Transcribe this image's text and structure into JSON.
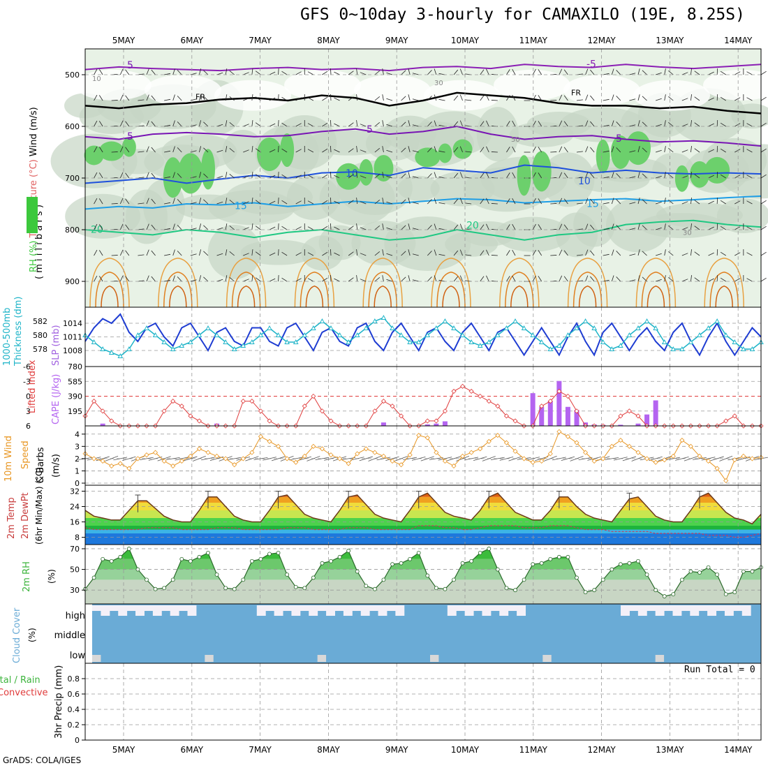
{
  "title": "GFS 0~10day 3-hourly for CAMAXILO (19E, 8.25S)",
  "footer": "GrADS: COLA/IGES",
  "colors": {
    "rh_green": "#3cc83c",
    "slp": "#1e3cd2",
    "thickness": "#1eb4c8",
    "lifted": "#e03c3c",
    "cape": "#b464f0",
    "speed": "#e89622",
    "rh2m": "#3cb43c",
    "cloud": "#6aabd6"
  },
  "chart_data": [
    {
      "type": "heatmap",
      "panel": "upper-air",
      "ylabel_parts": [
        "RH (%)",
        "Temperature (°C)",
        "Wind (m/s)"
      ],
      "ylabel_sub": "( m i l l i b a r s )",
      "x_labels": [
        "5MAY",
        "6MAY",
        "7MAY",
        "8MAY",
        "9MAY",
        "10MAY",
        "11MAY",
        "12MAY",
        "13MAY",
        "14MAY"
      ],
      "y_ticks": [
        500,
        600,
        700,
        800,
        900
      ],
      "ylim": [
        450,
        950
      ],
      "contour_labels": [
        "-5",
        "FR",
        "5",
        "10",
        "15",
        "20",
        "30",
        "50",
        "10"
      ],
      "isotherms": [
        {
          "label": "-5",
          "p": [
            490,
            485,
            488,
            490,
            492,
            488,
            486,
            490,
            488,
            492,
            486,
            484,
            488,
            480,
            484,
            486,
            480,
            485,
            488,
            484,
            480
          ]
        },
        {
          "label": "FR",
          "p": [
            560,
            565,
            558,
            555,
            548,
            545,
            550,
            540,
            545,
            560,
            550,
            535,
            540,
            545,
            555,
            560,
            560,
            565,
            562,
            570,
            575
          ]
        },
        {
          "label": "5",
          "p": [
            620,
            625,
            615,
            612,
            615,
            620,
            618,
            610,
            605,
            615,
            610,
            600,
            615,
            625,
            620,
            618,
            625,
            630,
            628,
            632,
            638
          ]
        },
        {
          "label": "10",
          "p": [
            710,
            705,
            700,
            710,
            702,
            695,
            700,
            690,
            688,
            695,
            680,
            685,
            690,
            675,
            680,
            690,
            685,
            690,
            692,
            690,
            692
          ]
        },
        {
          "label": "15",
          "p": [
            760,
            755,
            758,
            750,
            752,
            748,
            755,
            750,
            745,
            750,
            745,
            740,
            742,
            748,
            745,
            742,
            740,
            745,
            742,
            738,
            735
          ]
        },
        {
          "label": "20",
          "p": [
            800,
            805,
            810,
            800,
            805,
            815,
            805,
            800,
            810,
            820,
            815,
            800,
            810,
            820,
            810,
            805,
            790,
            785,
            782,
            790,
            795
          ]
        }
      ]
    },
    {
      "type": "line",
      "panel": "slp-thickness",
      "ylabel_left": [
        "1000-500mb",
        "Thickness (dm)"
      ],
      "ylabel_right": "SLP (mb)",
      "y_ticks_left": [
        578,
        580,
        582
      ],
      "y_ticks_right": [
        1008,
        1011,
        1014
      ],
      "series": [
        {
          "name": "SLP (mb)",
          "values": [
            1010,
            1013,
            1015,
            1014,
            1016,
            1012,
            1010,
            1013,
            1014,
            1011,
            1009,
            1013,
            1014,
            1011,
            1008,
            1012,
            1013,
            1010,
            1009,
            1013,
            1013,
            1010,
            1009,
            1013,
            1014,
            1011,
            1008,
            1012,
            1013,
            1010,
            1009,
            1013,
            1014,
            1010,
            1008,
            1012,
            1014,
            1011,
            1008,
            1012,
            1013,
            1010,
            1008,
            1012,
            1014,
            1011,
            1008,
            1012,
            1013,
            1010,
            1007,
            1010,
            1013,
            1010,
            1007,
            1011,
            1014,
            1010,
            1007,
            1012,
            1014,
            1011,
            1008,
            1011,
            1013,
            1010,
            1008,
            1012,
            1014,
            1010,
            1007,
            1011,
            1014,
            1010,
            1007,
            1010,
            1013,
            1011
          ]
        },
        {
          "name": "1000-500mb Thickness (dm)",
          "values": [
            580,
            579,
            578,
            577.5,
            577,
            578,
            580,
            581,
            580,
            579,
            578,
            578.5,
            579,
            580,
            581,
            580,
            579,
            578,
            578.5,
            579,
            580,
            581,
            580,
            579,
            579,
            580,
            581,
            582,
            581,
            580,
            579,
            580,
            581,
            582,
            582.5,
            581,
            580,
            579,
            579,
            580,
            581,
            582,
            581,
            580,
            579,
            578.5,
            579,
            580,
            581,
            582,
            581,
            580,
            579,
            578,
            578.5,
            580,
            581,
            582,
            581,
            579,
            578,
            578.5,
            580,
            581,
            582,
            581,
            579,
            578,
            578,
            579,
            580,
            581,
            582,
            580,
            579,
            578,
            578,
            579
          ]
        }
      ]
    },
    {
      "type": "bar",
      "panel": "lifted-cape",
      "ylabel_left": "Lifted Index",
      "ylabel_right": "CAPE (J/kg)",
      "y_ticks_left": [
        "-6",
        "-3",
        "0",
        "3",
        "6"
      ],
      "y_ticks_right": [
        195,
        390,
        585,
        780
      ],
      "series": [
        {
          "name": "Lifted Index",
          "values": [
            4,
            1,
            3,
            5,
            6,
            6,
            6,
            6,
            6,
            3,
            1,
            2,
            4,
            5,
            6,
            6,
            6,
            6,
            1,
            1,
            3,
            5,
            6,
            6,
            6,
            2,
            0,
            3,
            5,
            6,
            6,
            6,
            6,
            3,
            1,
            2,
            4,
            6,
            6,
            5,
            5,
            3,
            -1,
            -2,
            -1,
            0,
            1,
            2,
            4,
            5,
            6,
            6,
            2,
            1,
            -1,
            0,
            3,
            6,
            6,
            6,
            6,
            4,
            3,
            4,
            6,
            6,
            6,
            6,
            6,
            6,
            6,
            6,
            6,
            5,
            4,
            6,
            6,
            6
          ]
        },
        {
          "name": "CAPE (J/kg)",
          "values": [
            0,
            0,
            30,
            0,
            0,
            0,
            0,
            0,
            0,
            0,
            0,
            0,
            0,
            0,
            0,
            30,
            0,
            0,
            0,
            0,
            0,
            0,
            0,
            0,
            0,
            0,
            0,
            0,
            0,
            0,
            0,
            0,
            0,
            0,
            45,
            0,
            0,
            0,
            0,
            20,
            30,
            60,
            0,
            0,
            0,
            0,
            0,
            0,
            0,
            0,
            0,
            430,
            250,
            330,
            590,
            250,
            210,
            45,
            20,
            15,
            0,
            15,
            0,
            30,
            150,
            335,
            0,
            0,
            0,
            0,
            0,
            0,
            0,
            0,
            0,
            0,
            0,
            0
          ]
        }
      ]
    },
    {
      "type": "line",
      "panel": "wind10m",
      "ylabel": [
        "10m Wind",
        "Speed",
        "& Barbs",
        "(m/s)"
      ],
      "y_ticks": [
        0,
        1,
        2,
        3,
        4
      ],
      "series": [
        {
          "name": "10m Wind Speed",
          "values": [
            2.4,
            2,
            1.8,
            1.4,
            1.6,
            1.2,
            2,
            2.3,
            2.5,
            1.8,
            1.4,
            1.8,
            2.2,
            2.8,
            2.5,
            2.2,
            2,
            1.5,
            2,
            2.5,
            3.8,
            3.4,
            3,
            2,
            1.7,
            2.2,
            3,
            2.8,
            2.3,
            2,
            1.6,
            2.4,
            2.8,
            2.5,
            2.2,
            1.8,
            1.5,
            2.3,
            3.9,
            3.7,
            2.5,
            1.8,
            1.4,
            2.2,
            2.5,
            2.8,
            3.4,
            3.9,
            3.3,
            2.6,
            2,
            1.7,
            1.8,
            2.4,
            4.2,
            3.8,
            3.3,
            2.5,
            1.8,
            2,
            3,
            3.5,
            3,
            2.5,
            2,
            1.7,
            1.9,
            2.2,
            3.5,
            3,
            2.2,
            1.8,
            1.2,
            0.2,
            1.9,
            2.2,
            2,
            2.1
          ]
        }
      ]
    },
    {
      "type": "area",
      "panel": "temp2m",
      "ylabel": [
        "2m Temp",
        "2m DewPt",
        "(6hr Min/Max) (°C)"
      ],
      "y_ticks": [
        8,
        16,
        24,
        32
      ],
      "series": [
        {
          "name": "2m Temp",
          "values": [
            22,
            19,
            18,
            17,
            17,
            22,
            27,
            27,
            23,
            19,
            17,
            16,
            16,
            22,
            29,
            29,
            24,
            19,
            17,
            16,
            16,
            22,
            29,
            30,
            25,
            20,
            18,
            17,
            16,
            22,
            29,
            30,
            25,
            20,
            18,
            17,
            16,
            22,
            29,
            31,
            26,
            21,
            19,
            18,
            17,
            22,
            29,
            31,
            26,
            21,
            19,
            17,
            17,
            22,
            29,
            29,
            24,
            20,
            18,
            17,
            16,
            22,
            28,
            29,
            24,
            19,
            17,
            16,
            16,
            22,
            29,
            31,
            26,
            21,
            18,
            17,
            15,
            20
          ]
        },
        {
          "name": "2m DewPt",
          "values": [
            13,
            12,
            12,
            12,
            12,
            12,
            12,
            13,
            13,
            13,
            13,
            12,
            12,
            12,
            12,
            13,
            13,
            13,
            12,
            12,
            12,
            12,
            12,
            13,
            13,
            13,
            12,
            12,
            12,
            12,
            13,
            13,
            13,
            12,
            12,
            12,
            12,
            12,
            14,
            14,
            14,
            13,
            13,
            12,
            12,
            13,
            14,
            14,
            14,
            14,
            13,
            13,
            13,
            14,
            14,
            14,
            13,
            12,
            12,
            12,
            11,
            11,
            11,
            11,
            11,
            10,
            10,
            10,
            10,
            10,
            10,
            9,
            9,
            9,
            8,
            8,
            9,
            10
          ]
        }
      ]
    },
    {
      "type": "area",
      "panel": "rh2m",
      "ylabel": [
        "2m RH",
        "(%)"
      ],
      "y_ticks": [
        30,
        50,
        70
      ],
      "series": [
        {
          "name": "2m RH",
          "values": [
            31,
            42,
            60,
            58,
            62,
            70,
            50,
            40,
            31,
            32,
            40,
            60,
            58,
            62,
            66,
            45,
            32,
            31,
            40,
            58,
            60,
            65,
            66,
            45,
            33,
            32,
            42,
            56,
            58,
            62,
            68,
            48,
            34,
            31,
            40,
            55,
            56,
            60,
            66,
            44,
            32,
            31,
            40,
            56,
            58,
            66,
            70,
            50,
            32,
            30,
            40,
            55,
            56,
            60,
            62,
            62,
            42,
            28,
            30,
            40,
            50,
            55,
            56,
            58,
            45,
            30,
            24,
            26,
            40,
            48,
            47,
            52,
            45,
            26,
            28,
            48,
            48,
            52
          ]
        }
      ]
    },
    {
      "type": "bar",
      "panel": "cloud",
      "ylabel": [
        "Cloud Cover",
        "(%)"
      ],
      "levels": [
        "high",
        "middle",
        "low"
      ]
    },
    {
      "type": "bar",
      "panel": "precip",
      "ylabel_left": [
        "Total / Rain",
        "Convective"
      ],
      "ylabel": "3hr Precip (mm)",
      "y_ticks": [
        "0",
        "0.2",
        "0.4",
        "0.6",
        "0.8"
      ],
      "run_total": "Run Total = 0"
    }
  ]
}
